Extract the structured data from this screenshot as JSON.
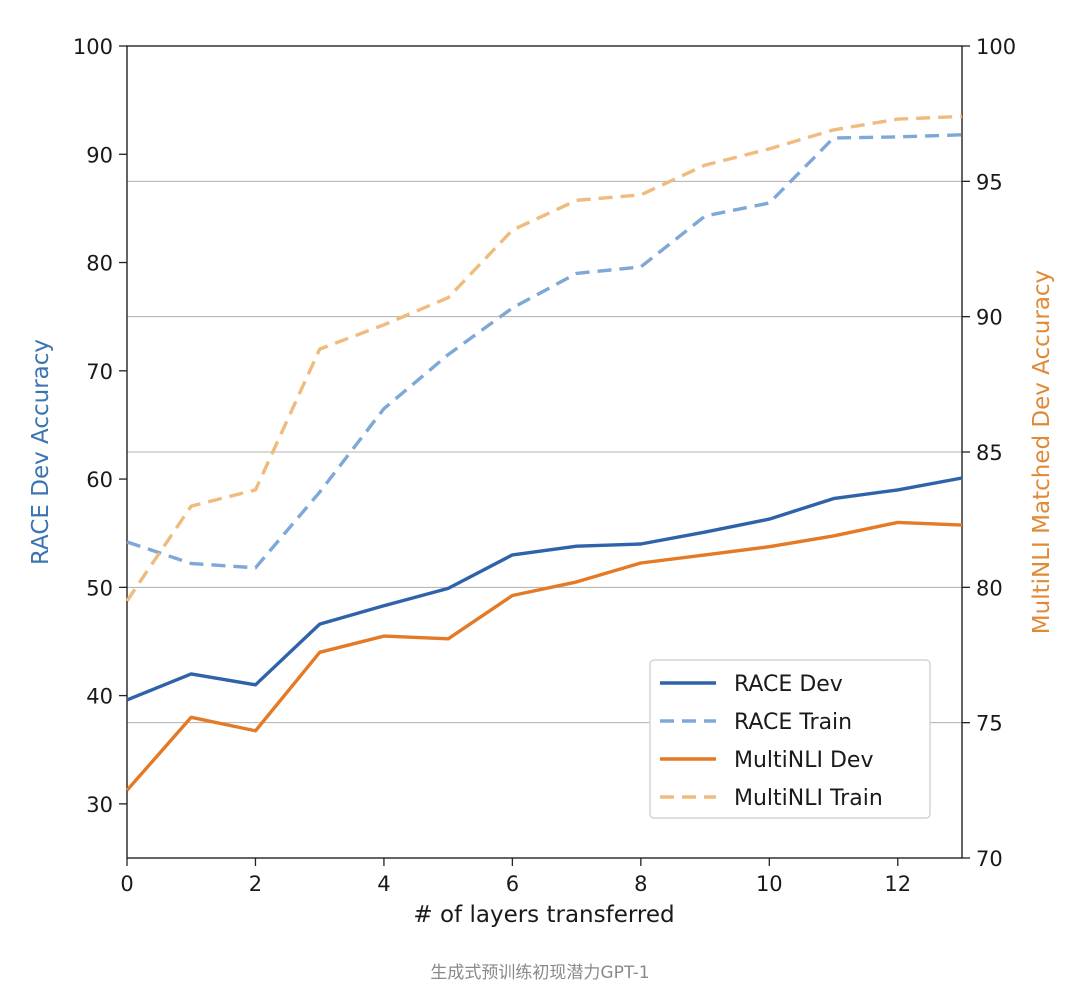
{
  "chart_data": {
    "type": "line",
    "x": [
      0,
      1,
      2,
      3,
      4,
      5,
      6,
      7,
      8,
      9,
      10,
      11,
      12,
      13
    ],
    "xlim": [
      0,
      13
    ],
    "xticks": [
      0,
      2,
      4,
      6,
      8,
      10,
      12
    ],
    "xlabel": "# of layers transferred",
    "left_axis": {
      "label": "RACE Dev Accuracy",
      "color": "#3b73b3",
      "lim": [
        25,
        100
      ],
      "ticks": [
        30,
        40,
        50,
        60,
        70,
        80,
        90,
        100
      ]
    },
    "right_axis": {
      "label": "MultiNLI Matched Dev Accuracy",
      "color": "#e08a35",
      "lim": [
        70,
        100
      ],
      "ticks": [
        70,
        75,
        80,
        85,
        90,
        95,
        100
      ],
      "grid": true
    },
    "series": [
      {
        "name": "RACE Dev",
        "axis": "left",
        "style": "solid",
        "color": "#2e63aa",
        "values": [
          39.6,
          42.0,
          41.0,
          46.6,
          48.3,
          49.9,
          53.0,
          53.8,
          54.0,
          55.1,
          56.3,
          58.2,
          59.0,
          60.1
        ]
      },
      {
        "name": "RACE Train",
        "axis": "left",
        "style": "dashed",
        "color": "#7ea8d8",
        "values": [
          54.2,
          52.2,
          51.8,
          58.8,
          66.5,
          71.5,
          75.8,
          79.0,
          79.6,
          84.3,
          85.5,
          91.5,
          91.6,
          91.8
        ]
      },
      {
        "name": "MultiNLI Dev",
        "axis": "right",
        "style": "solid",
        "color": "#e57a26",
        "values": [
          72.5,
          75.2,
          74.7,
          77.6,
          78.2,
          78.1,
          79.7,
          80.2,
          80.9,
          81.2,
          81.5,
          81.9,
          82.4,
          82.3
        ]
      },
      {
        "name": "MultiNLI Train",
        "axis": "right",
        "style": "dashed",
        "color": "#f0bb7e",
        "values": [
          79.5,
          83.0,
          83.6,
          88.8,
          89.7,
          90.7,
          93.2,
          94.3,
          94.5,
          95.6,
          96.2,
          96.9,
          97.3,
          97.4
        ]
      }
    ],
    "legend": {
      "placement": "bottom-right"
    }
  },
  "caption": "生成式预训练初现潜力GPT-1"
}
